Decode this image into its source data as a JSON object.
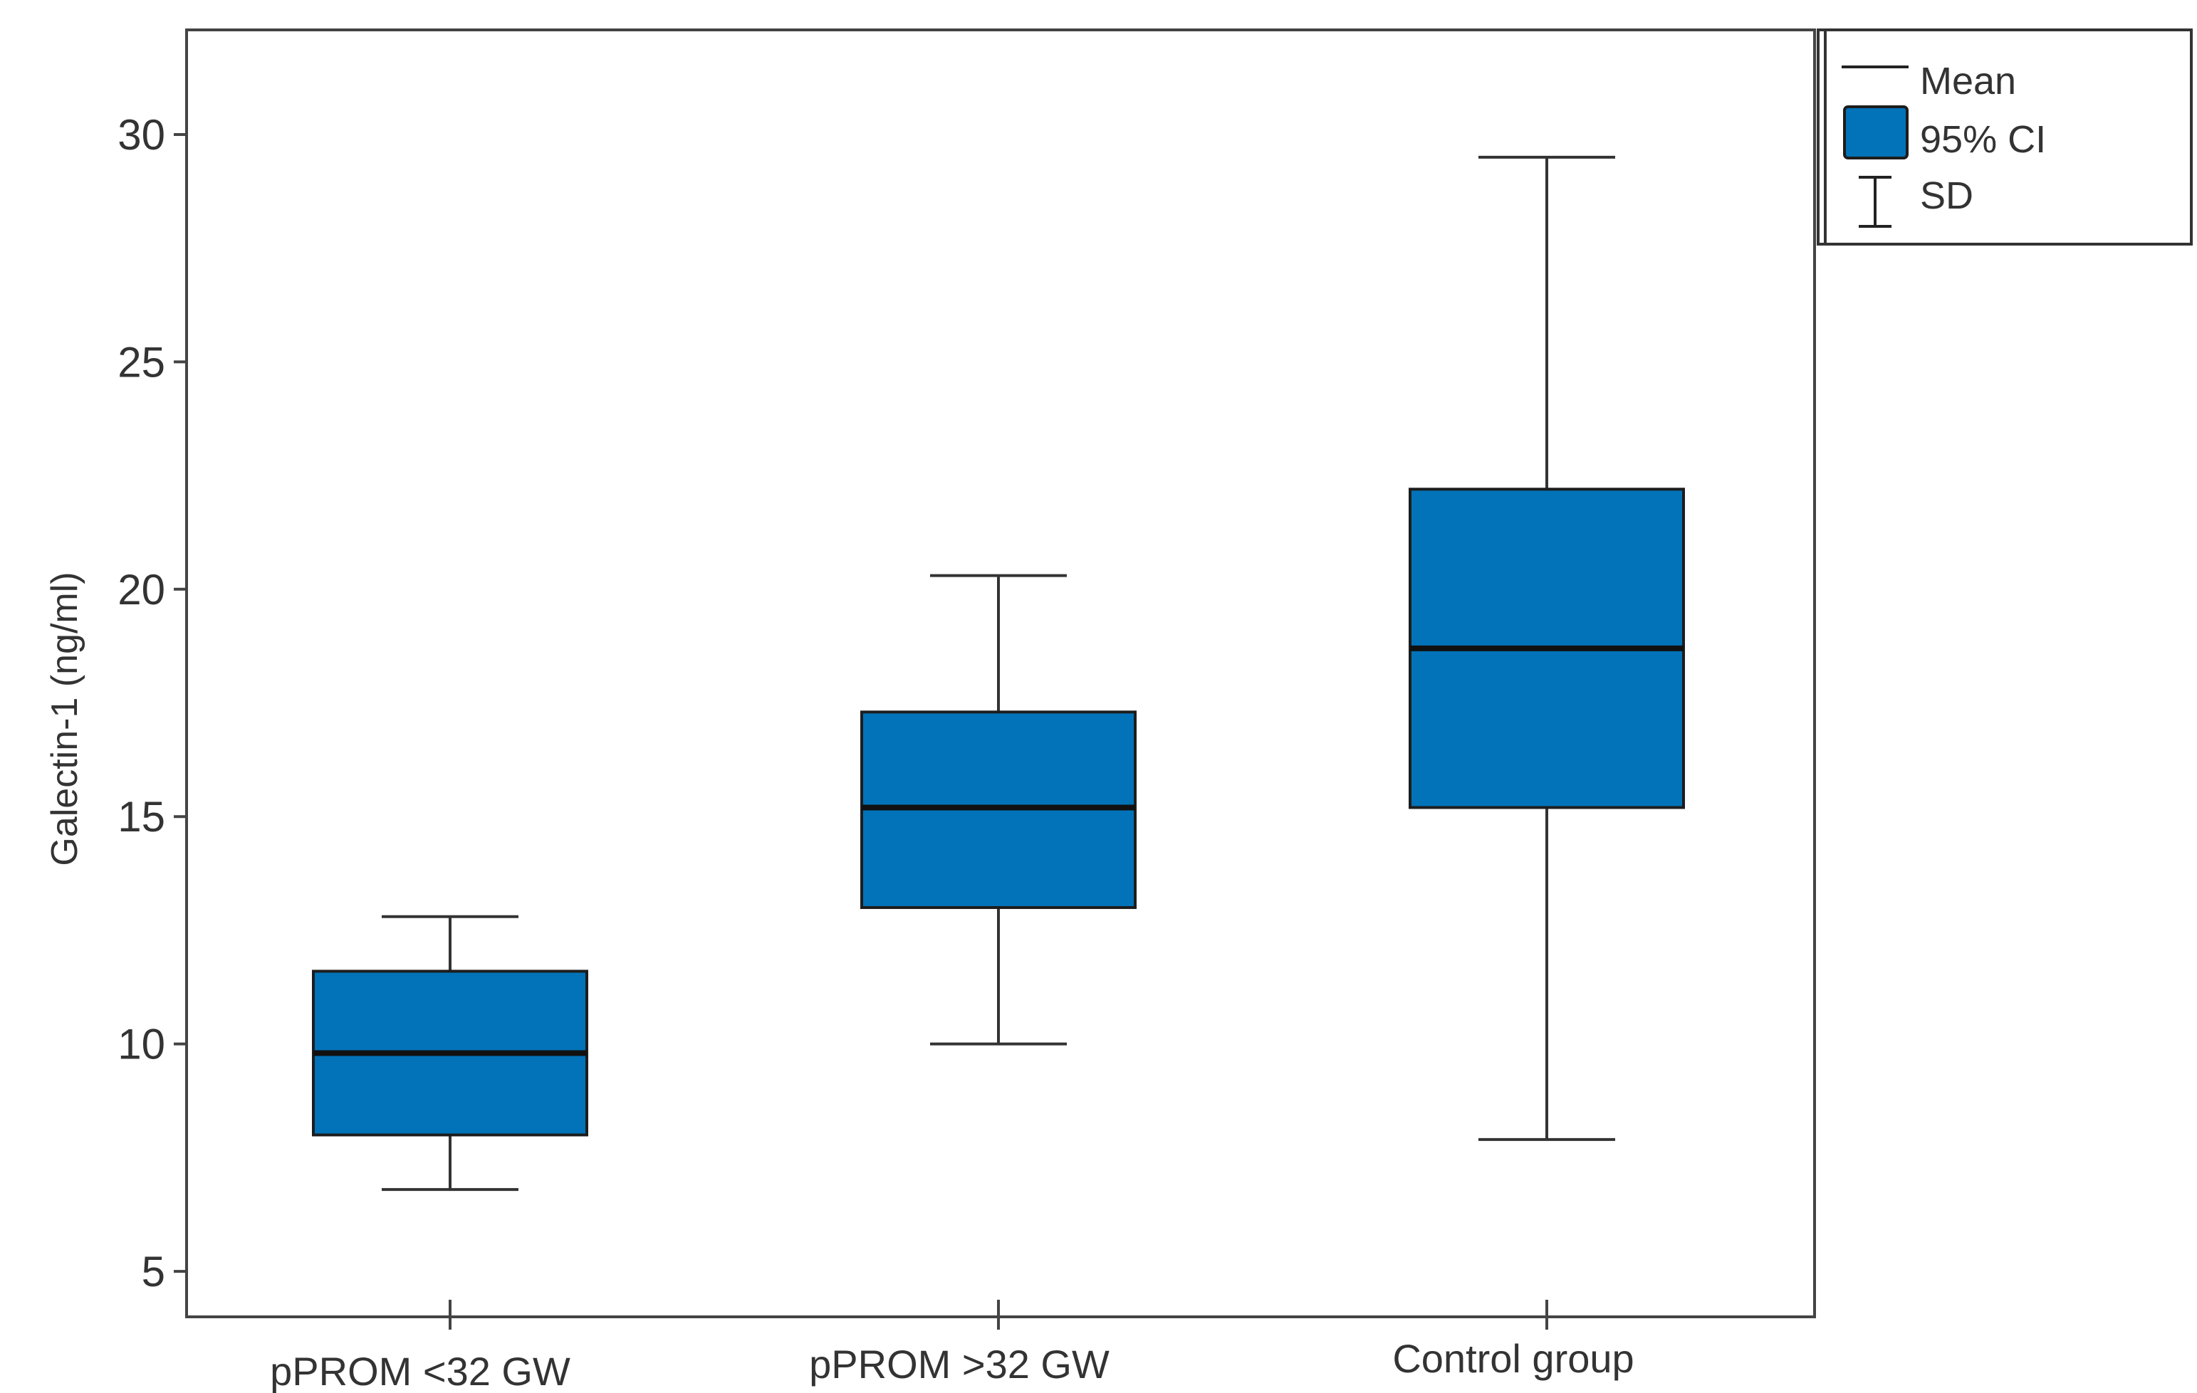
{
  "chart_data": {
    "type": "box",
    "title": "",
    "xlabel": "",
    "ylabel": "Galectin-1 (ng/ml)",
    "ylim": [
      4.0,
      32.3
    ],
    "yticks": [
      5,
      10,
      15,
      20,
      25,
      30
    ],
    "grid": false,
    "legend_position": "top-right",
    "legend": [
      {
        "symbol": "line",
        "label": "Mean"
      },
      {
        "symbol": "box",
        "label": "95% CI"
      },
      {
        "symbol": "errorbar",
        "label": "SD"
      }
    ],
    "box_color": "#0273B8",
    "groups": [
      {
        "label": "pPROM <32 GW",
        "mean": 9.8,
        "ci_low": 8.0,
        "ci_high": 11.6,
        "sd_low": 6.8,
        "sd_high": 12.8
      },
      {
        "label": "pPROM >32 GW",
        "mean": 15.2,
        "ci_low": 13.0,
        "ci_high": 17.3,
        "sd_low": 10.0,
        "sd_high": 20.3
      },
      {
        "label": "Control group",
        "mean": 18.7,
        "ci_low": 15.2,
        "ci_high": 22.2,
        "sd_low": 7.9,
        "sd_high": 29.5
      }
    ]
  }
}
